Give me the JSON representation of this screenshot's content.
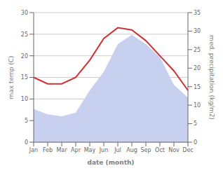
{
  "chart_data": {
    "type": "line",
    "xlabel": "date (month)",
    "ylabel": "max temp (C)",
    "y2label": "med. precipitation (kg/m2)",
    "categories": [
      "Jan",
      "Feb",
      "Mar",
      "Apr",
      "May",
      "Jun",
      "Jul",
      "Aug",
      "Sep",
      "Oct",
      "Nov",
      "Dec"
    ],
    "series": [
      {
        "type": "area",
        "color": "#c8d0f0",
        "axis": "y2",
        "values": [
          9.0,
          7.5,
          7.0,
          8.0,
          14.0,
          19.0,
          26.5,
          29.0,
          26.5,
          23.0,
          15.5,
          12.0
        ]
      },
      {
        "type": "line",
        "color": "#cc3333",
        "values": [
          15.0,
          13.5,
          13.5,
          15.0,
          19.0,
          24.0,
          26.5,
          26.0,
          23.5,
          20.0,
          16.5,
          12.0
        ]
      }
    ],
    "ylim": [
      0,
      30
    ],
    "yticks": [
      0,
      5,
      10,
      15,
      20,
      25,
      30
    ],
    "y2lim": [
      0,
      35
    ],
    "y2ticks": [
      0,
      5,
      10,
      15,
      20,
      25,
      30,
      35
    ],
    "grid": true
  }
}
